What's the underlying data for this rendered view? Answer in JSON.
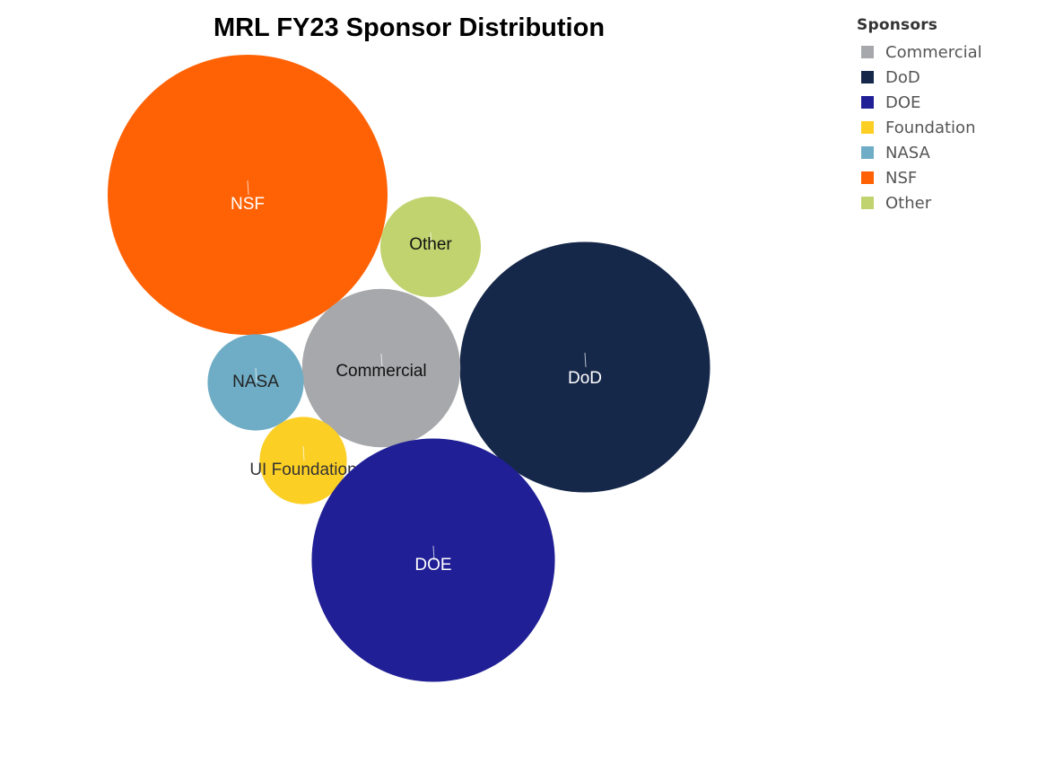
{
  "chart_data": {
    "type": "bubble",
    "title": "MRL FY23 Sponsor Distribution",
    "legend": {
      "title": "Sponsors",
      "placement": "top-right",
      "entries": [
        {
          "label": "Commercial",
          "color": "#a7a8ab"
        },
        {
          "label": "DoD",
          "color": "#16284a"
        },
        {
          "label": "DOE",
          "color": "#201f95"
        },
        {
          "label": "Foundation",
          "color": "#fccf24"
        },
        {
          "label": "NASA",
          "color": "#6fadc6"
        },
        {
          "label": "NSF",
          "color": "#ff6205"
        },
        {
          "label": "Other",
          "color": "#c1d36e"
        }
      ]
    },
    "bubbles": [
      {
        "label": "NSF",
        "category": "NSF",
        "relative_size": 1.0,
        "color": "#ff6205",
        "text_color": "#ffffff"
      },
      {
        "label": "Other",
        "category": "Other",
        "relative_size": 0.129,
        "color": "#c1d36e",
        "text_color": "#111111"
      },
      {
        "label": "DoD",
        "category": "DoD",
        "relative_size": 0.8,
        "color": "#16284a",
        "text_color": "#ffffff"
      },
      {
        "label": "Commercial",
        "category": "Commercial",
        "relative_size": 0.32,
        "color": "#a7a8ab",
        "text_color": "#111111"
      },
      {
        "label": "NASA",
        "category": "NASA",
        "relative_size": 0.118,
        "color": "#6fadc6",
        "text_color": "#222222"
      },
      {
        "label": "UI Foundation",
        "category": "Foundation",
        "relative_size": 0.097,
        "color": "#fccf24",
        "text_color": "#333333"
      },
      {
        "label": "DOE",
        "category": "DOE",
        "relative_size": 0.755,
        "color": "#201f95",
        "text_color": "#ffffff"
      }
    ]
  }
}
